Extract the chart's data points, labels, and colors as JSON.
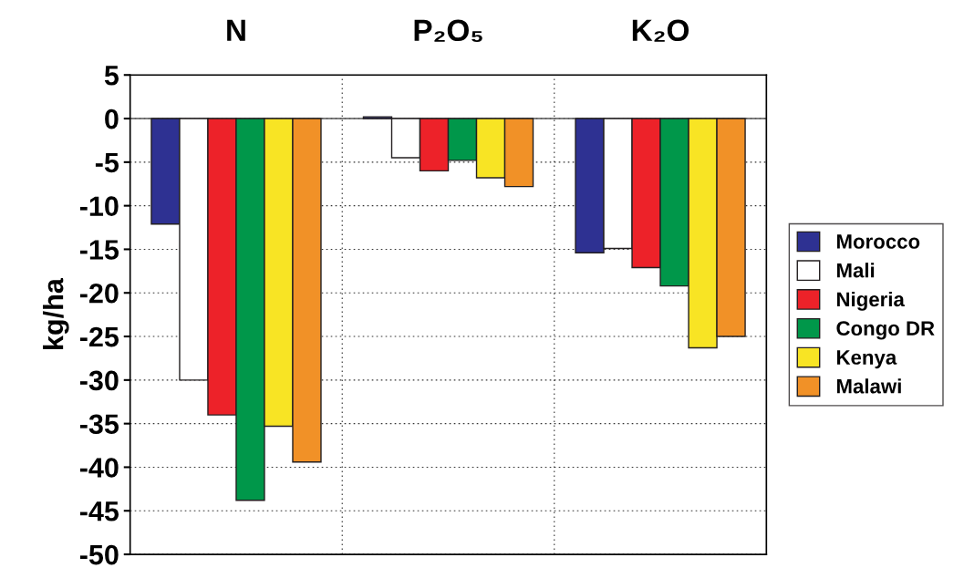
{
  "chart_data": {
    "type": "bar",
    "ylabel": "kg/ha",
    "categories": [
      "N",
      "P₂O₅",
      "K₂O"
    ],
    "series": [
      {
        "name": "Morocco",
        "color": "#2e3192",
        "values": [
          -12.1,
          0.2,
          -15.4
        ]
      },
      {
        "name": "Mali",
        "color": "#ffffff",
        "values": [
          -30.0,
          -4.5,
          -14.9
        ]
      },
      {
        "name": "Nigeria",
        "color": "#ed2229",
        "values": [
          -34.0,
          -6.0,
          -17.1
        ]
      },
      {
        "name": "Congo DR",
        "color": "#00974a",
        "values": [
          -43.8,
          -4.8,
          -19.2
        ]
      },
      {
        "name": "Kenya",
        "color": "#f8e424",
        "values": [
          -35.3,
          -6.8,
          -26.3
        ]
      },
      {
        "name": "Malawi",
        "color": "#f19127",
        "values": [
          -39.4,
          -7.8,
          -25.0
        ]
      }
    ],
    "ylim": [
      -50,
      5
    ],
    "yticks": [
      5,
      0,
      -5,
      -10,
      -15,
      -20,
      -25,
      -30,
      -35,
      -40,
      -45,
      -50
    ],
    "grid": true,
    "legend": "right"
  }
}
